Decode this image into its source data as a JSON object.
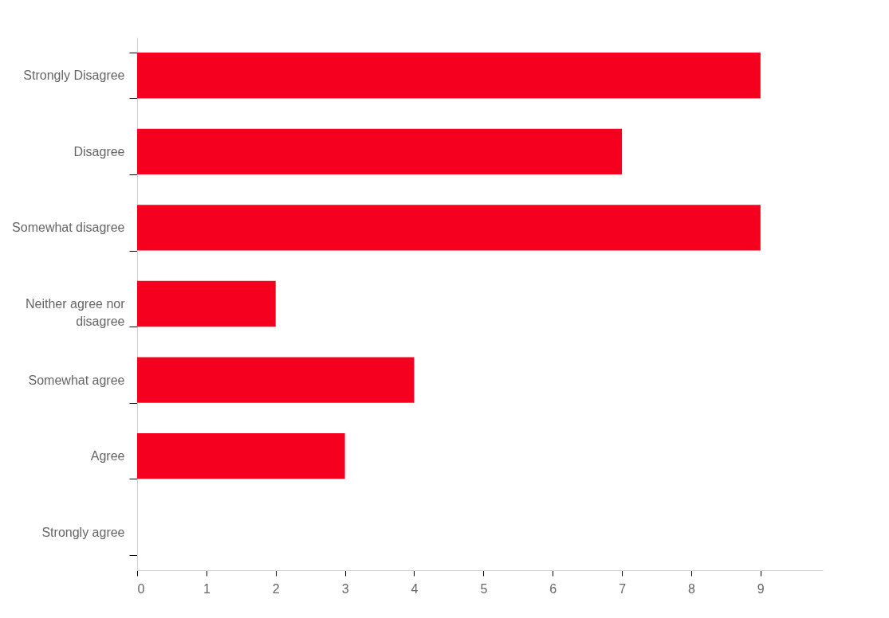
{
  "chart_data": {
    "type": "bar",
    "orientation": "horizontal",
    "categories": [
      "Strongly Disagree",
      "Disagree",
      "Somewhat disagree",
      "Neither agree nor disagree",
      "Somewhat agree",
      "Agree",
      "Strongly agree"
    ],
    "values": [
      9,
      7,
      9,
      2,
      4,
      3,
      0
    ],
    "color": "#f5001e",
    "xlim": [
      0,
      9.9
    ],
    "xticks": [
      0,
      1,
      2,
      3,
      4,
      5,
      6,
      7,
      8,
      9
    ],
    "grid": false
  }
}
